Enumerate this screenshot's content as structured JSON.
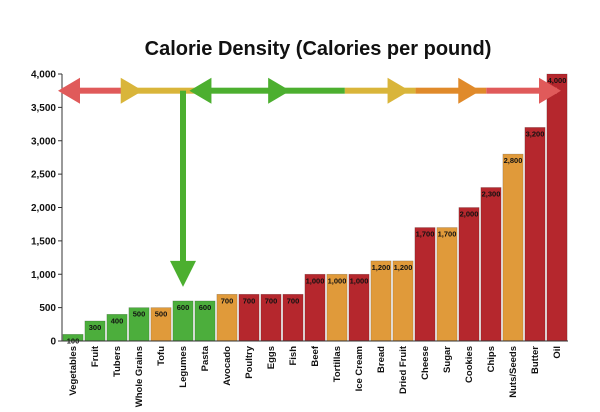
{
  "chart_data": {
    "type": "bar",
    "title": "Calorie Density  (Calories per pound)",
    "xlabel": "",
    "ylabel": "",
    "ylim": [
      0,
      4000
    ],
    "yticks": [
      0,
      500,
      1000,
      1500,
      2000,
      2500,
      3000,
      3500,
      4000
    ],
    "ytick_labels": [
      "0",
      "500",
      "1,000",
      "1,500",
      "2,000",
      "2,500",
      "3,000",
      "3,500",
      "4,000"
    ],
    "grid": false,
    "legend": "none",
    "categories": [
      "Vegetables",
      "Fruit",
      "Tubers",
      "Whole Grains",
      "Tofu",
      "Legumes",
      "Pasta",
      "Avocado",
      "Poultry",
      "Eggs",
      "Fish",
      "Beef",
      "Tortillas",
      "Ice Cream",
      "Bread",
      "Dried Fruit",
      "Cheese",
      "Sugar",
      "Cookies",
      "Chips",
      "Nuts/Seeds",
      "Butter",
      "Oil"
    ],
    "values": [
      100,
      300,
      400,
      500,
      500,
      600,
      600,
      700,
      700,
      700,
      700,
      1000,
      1000,
      1000,
      1200,
      1200,
      1700,
      1700,
      2000,
      2300,
      2800,
      3200,
      4000
    ],
    "data_labels": [
      "100",
      "300",
      "400",
      "500",
      "500",
      "600",
      "600",
      "700",
      "700",
      "700",
      "700",
      "1,000",
      "1,000",
      "1,000",
      "1,200",
      "1,200",
      "1,700",
      "1,700",
      "2,000",
      "2,300",
      "2,800",
      "3,200",
      "4,000"
    ],
    "bar_colors": [
      "#4cae3c",
      "#4cae3c",
      "#4cae3c",
      "#4cae3c",
      "#e09a3a",
      "#4cae3c",
      "#4cae3c",
      "#e09a3a",
      "#b5272d",
      "#b5272d",
      "#b5272d",
      "#b5272d",
      "#e09a3a",
      "#b5272d",
      "#e09a3a",
      "#e09a3a",
      "#b5272d",
      "#e09a3a",
      "#b5272d",
      "#b5272d",
      "#e09a3a",
      "#b5272d",
      "#b5272d"
    ],
    "annotations": {
      "horizontal_arrow": {
        "x_from": 0,
        "x_to": 22.5,
        "y": 3750,
        "segment_colors": [
          "#e05a5a",
          "#d9b53a",
          "#4caf2f",
          "#4caf2f",
          "#d9b53a",
          "#e08a2a",
          "#e05a5a"
        ]
      },
      "vertical_arrow": {
        "x": 5,
        "y_from": 3750,
        "y_to": 900,
        "color": "#4caf2f"
      }
    }
  }
}
